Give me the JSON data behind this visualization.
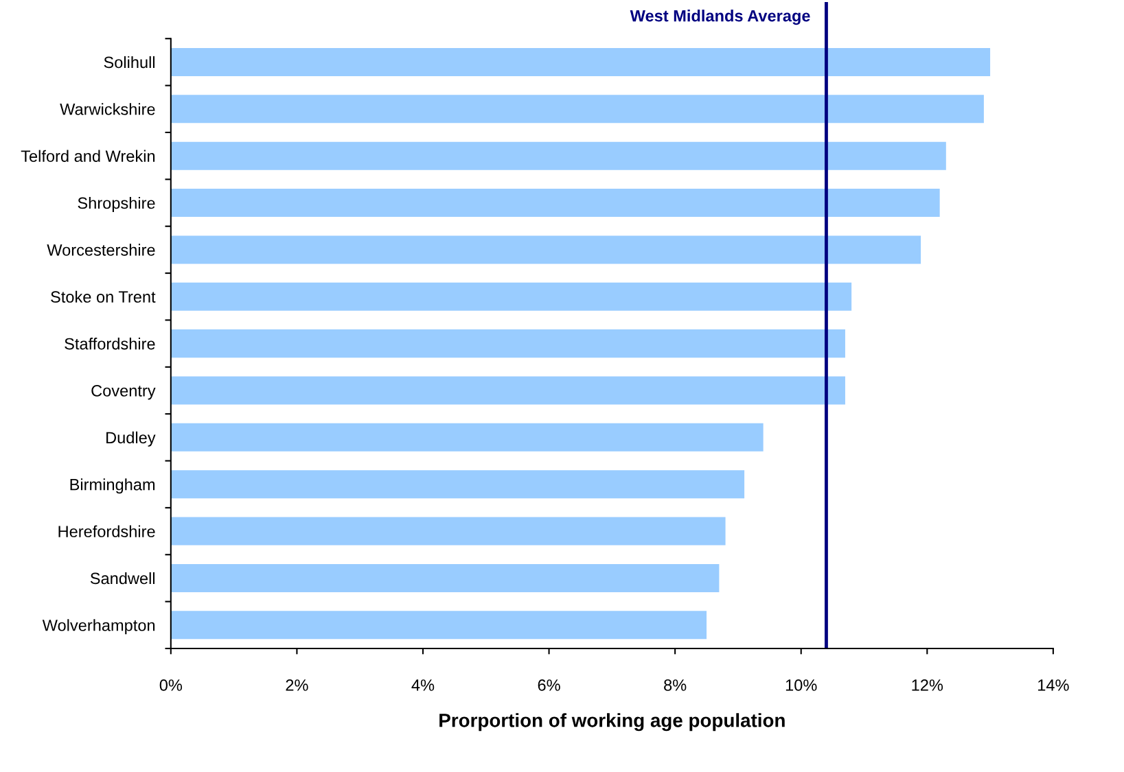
{
  "chart_data": {
    "type": "bar",
    "orientation": "horizontal",
    "categories": [
      "Solihull",
      "Warwickshire",
      "Telford and Wrekin",
      "Shropshire",
      "Worcestershire",
      "Stoke on Trent",
      "Staffordshire",
      "Coventry",
      "Dudley",
      "Birmingham",
      "Herefordshire",
      "Sandwell",
      "Wolverhampton"
    ],
    "values": [
      13.0,
      12.9,
      12.3,
      12.2,
      11.9,
      10.8,
      10.7,
      10.7,
      9.4,
      9.1,
      8.8,
      8.7,
      8.5
    ],
    "color": "#99ccff",
    "xlabel": "Prorportion of working age population",
    "xlim": [
      0,
      14
    ],
    "xticks": [
      {
        "value": 0,
        "label": "0%"
      },
      {
        "value": 2,
        "label": "2%"
      },
      {
        "value": 4,
        "label": "4%"
      },
      {
        "value": 6,
        "label": "6%"
      },
      {
        "value": 8,
        "label": "8%"
      },
      {
        "value": 10,
        "label": "10%"
      },
      {
        "value": 12,
        "label": "12%"
      },
      {
        "value": 14,
        "label": "14%"
      }
    ],
    "ref_lines": [
      {
        "axis": "x",
        "value": 10.4,
        "label": "West Midlands Average",
        "color": "#000080"
      }
    ],
    "grid": false,
    "legend": false
  }
}
